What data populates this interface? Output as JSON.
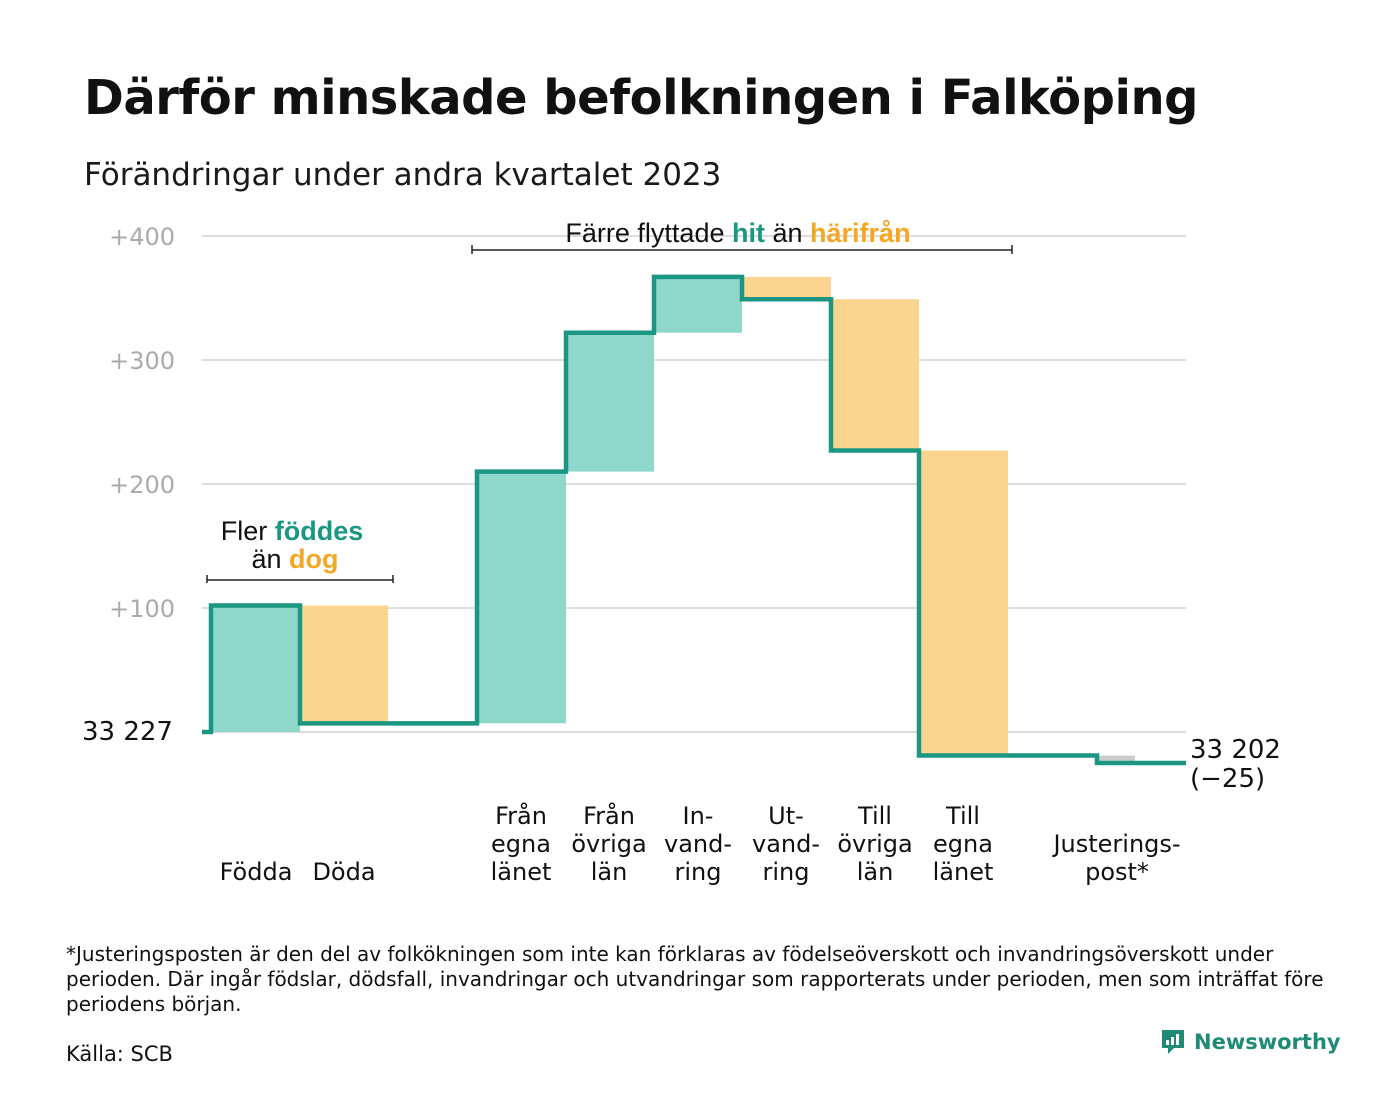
{
  "title": "Därför minskade befolkningen i Falköping",
  "subtitle": "Förändringar under andra kvartalet 2023",
  "chart_data": {
    "type": "waterfall",
    "ylim": [
      -30,
      400
    ],
    "yticks": [
      {
        "value": 100,
        "label": "+100"
      },
      {
        "value": 200,
        "label": "+200"
      },
      {
        "value": 300,
        "label": "+300"
      },
      {
        "value": 400,
        "label": "+400"
      }
    ],
    "grid": true,
    "start_label": "33  227",
    "end_label": "33 202",
    "end_change_label": "(−25)",
    "steps": [
      {
        "id": "fodda",
        "label_lines": [
          "Födda"
        ],
        "start": 0,
        "end": 102,
        "kind": "positive"
      },
      {
        "id": "doda",
        "label_lines": [
          "Döda"
        ],
        "start": 102,
        "end": 7,
        "kind": "negative"
      },
      {
        "id": "fran-egna",
        "label_lines": [
          "Från",
          "egna",
          "länet"
        ],
        "start": 7,
        "end": 210,
        "kind": "positive"
      },
      {
        "id": "fran-ovriga",
        "label_lines": [
          "Från",
          "övriga",
          "län"
        ],
        "start": 210,
        "end": 322,
        "kind": "positive"
      },
      {
        "id": "invandring",
        "label_lines": [
          "In-",
          "vand-",
          "ring"
        ],
        "start": 322,
        "end": 367,
        "kind": "positive"
      },
      {
        "id": "utvandring",
        "label_lines": [
          "Ut-",
          "vand-",
          "ring"
        ],
        "start": 367,
        "end": 349,
        "kind": "negative"
      },
      {
        "id": "till-ovriga",
        "label_lines": [
          "Till",
          "övriga",
          "län"
        ],
        "start": 349,
        "end": 227,
        "kind": "negative"
      },
      {
        "id": "till-egna",
        "label_lines": [
          "Till",
          "egna",
          "länet"
        ],
        "start": 227,
        "end": -19,
        "kind": "negative"
      },
      {
        "id": "justering",
        "label_lines": [
          "Justerings-",
          "post*"
        ],
        "start": -19,
        "end": -25,
        "kind": "adjustment"
      }
    ],
    "annotations": [
      {
        "id": "fler-foddes",
        "line1": [
          "Fler ",
          "föddes"
        ],
        "line2": [
          "än ",
          "dog"
        ]
      },
      {
        "id": "farre-flyttade",
        "line1": [
          "Färre flyttade ",
          "hit",
          " än ",
          "härifrån"
        ]
      }
    ],
    "colors": {
      "positive": "#8fd6cb",
      "negative": "#fbd590",
      "adjustment": "#cccccc",
      "line": "#1a9683",
      "accent_teal": "#1a9683",
      "accent_orange": "#f5a623",
      "grid": "#dddddd",
      "tick_text": "#aaaaaa"
    }
  },
  "footnote": "*Justeringsposten är den del av folkökningen som inte kan förklaras av födelseöverskott och invandringsöverskott under perioden. Där ingår födslar, dödsfall, invandringar och utvandringar som rapporterats under perioden, men som inträffat före periodens början.",
  "source": "Källa: SCB",
  "brand": {
    "name": "Newsworthy",
    "logo_icon": "newsworthy-logo-icon"
  }
}
